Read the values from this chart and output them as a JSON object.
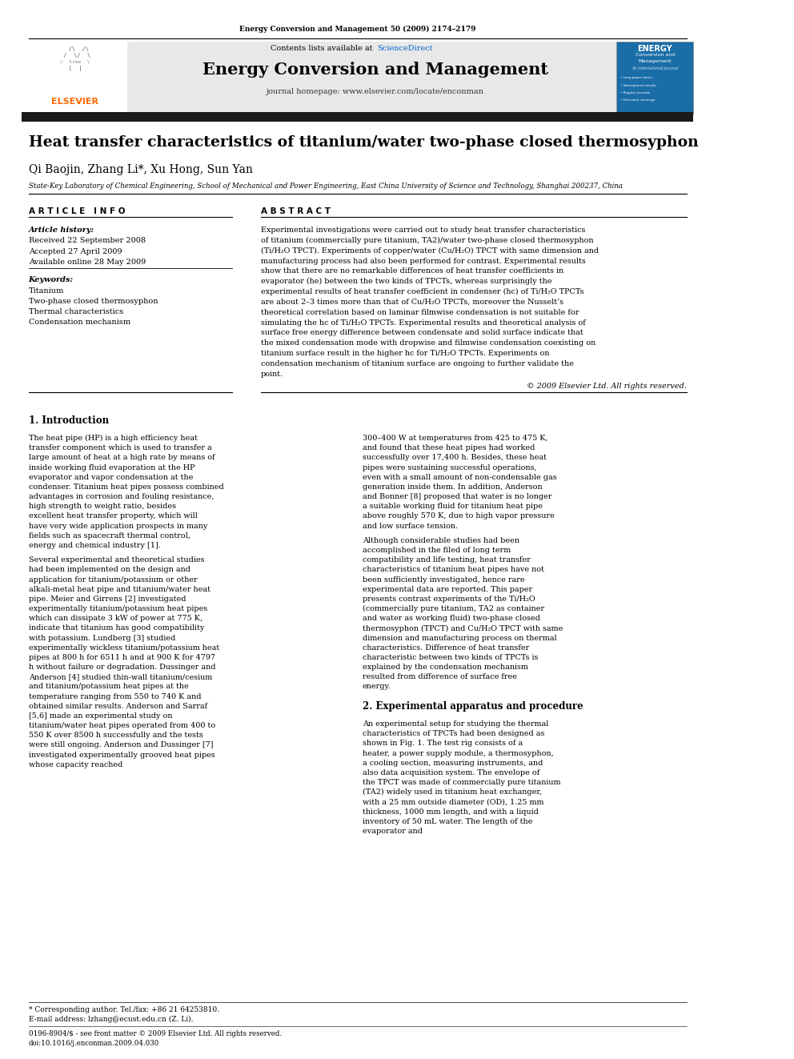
{
  "page_width": 9.92,
  "page_height": 13.23,
  "bg_color": "#ffffff",
  "header_journal_ref": "Energy Conversion and Management 50 (2009) 2174–2179",
  "header_bg": "#e8e8e8",
  "sciencedirect_color": "#0066cc",
  "elsevier_color": "#ff6600",
  "black_bar_color": "#1a1a1a",
  "paper_title": "Heat transfer characteristics of titanium/water two-phase closed thermosyphon",
  "authors": "Qi Baojin, Zhang Li*, Xu Hong, Sun Yan",
  "affiliation": "State-Key Laboratory of Chemical Engineering, School of Mechanical and Power Engineering, East China University of Science and Technology, Shanghai 200237, China",
  "article_info_title": "A R T I C L E   I N F O",
  "abstract_title": "A B S T R A C T",
  "article_history_label": "Article history:",
  "received": "Received 22 September 2008",
  "accepted": "Accepted 27 April 2009",
  "available": "Available online 28 May 2009",
  "keywords_label": "Keywords:",
  "keywords": [
    "Titanium",
    "Two-phase closed thermosyphon",
    "Thermal characteristics",
    "Condensation mechanism"
  ],
  "abstract_text": "Experimental investigations were carried out to study heat transfer characteristics of titanium (commercially pure titanium, TA2)/water two-phase closed thermosyphon (Ti/H₂O TPCT). Experiments of copper/water (Cu/H₂O) TPCT with same dimension and manufacturing process had also been performed for contrast. Experimental results show that there are no remarkable differences of heat transfer coefficients in evaporator (he) between the two kinds of TPCTs, whereas surprisingly the experimental results of heat transfer coefficient in condenser (hc) of Ti/H₂O TPCTs are about 2–3 times more than that of Cu/H₂O TPCTs, moreover the Nusselt’s theoretical correlation based on laminar filmwise condensation is not suitable for simulating the hc of Ti/H₂O TPCTs. Experimental results and theoretical analysis of surface free energy difference between condensate and solid surface indicate that the mixed condensation mode with dropwise and filmwise condensation coexisting on titanium surface result in the higher hc for Ti/H₂O TPCTs. Experiments on condensation mechanism of titanium surface are ongoing to further validate the point.",
  "copyright": "© 2009 Elsevier Ltd. All rights reserved.",
  "section1_title": "1. Introduction",
  "intro_col1_para1": "    The heat pipe (HP) is a high efficiency heat transfer component which is used to transfer a large amount of heat at a high rate by means of inside working fluid evaporation at the HP evaporator and vapor condensation at the condenser. Titanium heat pipes possess combined advantages in corrosion and fouling resistance, high strength to weight ratio, besides excellent heat transfer property, which will have very wide application prospects in many fields such as spacecraft thermal control, energy and chemical industry [1].",
  "intro_col1_para2": "    Several experimental and theoretical studies had been implemented on the design and application for titanium/potassium or other alkali-metal heat pipe and titanium/water heat pipe. Meier and Girrens [2] investigated experimentally titanium/potassium heat pipes which can dissipate 3 kW of power at 775 K, indicate that titanium has good compatibility with potassium. Lundberg [3] studied experimentally wickless titanium/potassium heat pipes at 800 h for 6511 h and at 900 K for 4797 h without failure or degradation. Dussinger and Anderson [4] studied thin-wall titanium/cesium and titanium/potassium heat pipes at the temperature ranging from 550 to 740 K and obtained similar results. Anderson and Sarraf [5,6] made an experimental study on titanium/water heat pipes operated from 400 to 550 K over 8500 h successfully and the tests were still ongoing. Anderson and Dussinger [7] investigated experimentally grooved heat pipes whose capacity reached",
  "intro_col2_para1": "300–400 W at temperatures from 425 to 475 K, and found that these heat pipes had worked successfully over 17,400 h. Besides, these heat pipes were sustaining successful operations, even with a small amount of non-condensable gas generation inside them. In addition, Anderson and Bonner [8] proposed that water is no longer a suitable working fluid for titanium heat pipe above roughly 570 K, due to high vapor pressure and low surface tension.",
  "intro_col2_para2": "    Although considerable studies had been accomplished in the filed of long term compatibility and life testing, heat transfer characteristics of titanium heat pipes have not been sufficiently investigated, hence rare experimental data are reported. This paper presents contrast experiments of the Ti/H₂O (commercially pure titanium, TA2 as container and water as working fluid) two-phase closed thermosyphon (TPCT) and Cu/H₂O TPCT with same dimension and manufacturing process on thermal characteristics. Difference of heat transfer characteristic between two kinds of TPCTs is explained by the condensation mechanism resulted from difference of surface free energy.",
  "section2_title": "2. Experimental apparatus and procedure",
  "section2_col2": "    An experimental setup for studying the thermal characteristics of TPCTs had been designed as shown in Fig. 1. The test rig consists of a heater, a power supply module, a thermosyphon, a cooling section, measuring instruments, and also data acquisition system. The envelope of the TPCT was made of commercially pure titanium (TA2) widely used in titanium heat exchanger, with a 25 mm outside diameter (OD), 1.25 mm thickness, 1000 mm length, and with a liquid inventory of 50 mL water. The length of the evaporator and",
  "footnote_star": "* Corresponding author. Tel./fax: +86 21 64253810.",
  "footnote_email": "E-mail address: lzhang@ecust.edu.cn (Z. Li).",
  "footnote_issn": "0196-8904/$ - see front matter © 2009 Elsevier Ltd. All rights reserved.",
  "footnote_doi": "doi:10.1016/j.enconman.2009.04.030"
}
